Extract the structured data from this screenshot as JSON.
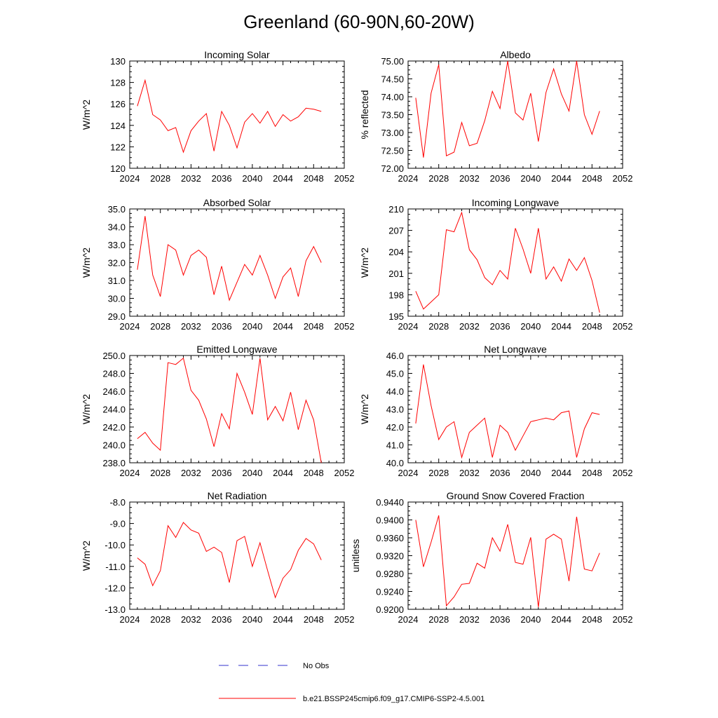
{
  "title": "Greenland (60-90N,60-20W)",
  "legend": [
    {
      "label": "No Obs",
      "color": "#3333cc",
      "style": "dashed"
    },
    {
      "label": "b.e21.BSSP245cmip6.f09_g17.CMIP6-SSP2-4.5.001",
      "color": "#ff0000",
      "style": "solid"
    }
  ],
  "chart_data": [
    {
      "type": "line",
      "title": "Incoming Solar",
      "ylabel": "W/m^2",
      "xlim": [
        2024,
        2052
      ],
      "xticks": [
        "2024",
        "2028",
        "2032",
        "2036",
        "2040",
        "2044",
        "2048",
        "2052"
      ],
      "ylim": [
        120,
        130
      ],
      "yticks": [
        "120",
        "122",
        "124",
        "126",
        "128",
        "130"
      ],
      "series": [
        {
          "color": "#ff0000",
          "x": [
            2025,
            2026,
            2027,
            2028,
            2029,
            2030,
            2031,
            2032,
            2033,
            2034,
            2035,
            2036,
            2037,
            2038,
            2039,
            2040,
            2041,
            2042,
            2043,
            2044,
            2045,
            2046,
            2047,
            2048,
            2049
          ],
          "y": [
            125.8,
            128.2,
            125.0,
            124.5,
            123.5,
            123.8,
            121.5,
            123.5,
            124.4,
            125.1,
            121.6,
            125.3,
            124.0,
            121.9,
            124.3,
            125.1,
            124.2,
            125.3,
            123.9,
            125.0,
            124.4,
            124.8,
            125.6,
            125.5,
            125.3
          ]
        }
      ]
    },
    {
      "type": "line",
      "title": "Albedo",
      "ylabel": "% reflected",
      "xlim": [
        2024,
        2052
      ],
      "xticks": [
        "2024",
        "2028",
        "2032",
        "2036",
        "2040",
        "2044",
        "2048",
        "2052"
      ],
      "ylim": [
        72.0,
        75.0
      ],
      "yticks": [
        "72.00",
        "72.50",
        "73.00",
        "73.50",
        "74.00",
        "74.50",
        "75.00"
      ],
      "series": [
        {
          "color": "#ff0000",
          "x": [
            2025,
            2026,
            2027,
            2028,
            2029,
            2030,
            2031,
            2032,
            2033,
            2034,
            2035,
            2036,
            2037,
            2038,
            2039,
            2040,
            2041,
            2042,
            2043,
            2044,
            2045,
            2046,
            2047,
            2048,
            2049
          ],
          "y": [
            73.97,
            72.3,
            74.1,
            74.9,
            72.35,
            72.45,
            73.28,
            72.63,
            72.7,
            73.33,
            74.15,
            73.67,
            75.0,
            73.55,
            73.35,
            74.1,
            72.75,
            74.12,
            74.78,
            74.08,
            73.6,
            75.0,
            73.5,
            72.95,
            73.6
          ]
        }
      ]
    },
    {
      "type": "line",
      "title": "Absorbed Solar",
      "ylabel": "W/m^2",
      "xlim": [
        2024,
        2052
      ],
      "xticks": [
        "2024",
        "2028",
        "2032",
        "2036",
        "2040",
        "2044",
        "2048",
        "2052"
      ],
      "ylim": [
        29.0,
        35.0
      ],
      "yticks": [
        "29.0",
        "30.0",
        "31.0",
        "32.0",
        "33.0",
        "34.0",
        "35.0"
      ],
      "series": [
        {
          "color": "#ff0000",
          "x": [
            2025,
            2026,
            2027,
            2028,
            2029,
            2030,
            2031,
            2032,
            2033,
            2034,
            2035,
            2036,
            2037,
            2038,
            2039,
            2040,
            2041,
            2042,
            2043,
            2044,
            2045,
            2046,
            2047,
            2048,
            2049
          ],
          "y": [
            31.6,
            34.6,
            31.3,
            30.1,
            33.0,
            32.7,
            31.3,
            32.4,
            32.7,
            32.3,
            30.2,
            31.8,
            29.9,
            30.9,
            31.9,
            31.3,
            32.4,
            31.3,
            30.0,
            31.2,
            31.7,
            30.1,
            32.1,
            32.9,
            32.0
          ]
        }
      ]
    },
    {
      "type": "line",
      "title": "Incoming Longwave",
      "ylabel": "W/m^2",
      "xlim": [
        2024,
        2052
      ],
      "xticks": [
        "2024",
        "2028",
        "2032",
        "2036",
        "2040",
        "2044",
        "2048",
        "2052"
      ],
      "ylim": [
        195,
        210
      ],
      "yticks": [
        "195",
        "198",
        "201",
        "204",
        "207",
        "210"
      ],
      "series": [
        {
          "color": "#ff0000",
          "x": [
            2025,
            2026,
            2027,
            2028,
            2029,
            2030,
            2031,
            2032,
            2033,
            2034,
            2035,
            2036,
            2037,
            2038,
            2039,
            2040,
            2041,
            2042,
            2043,
            2044,
            2045,
            2046,
            2047,
            2048,
            2049
          ],
          "y": [
            198.5,
            196.0,
            197.0,
            198.0,
            207.1,
            206.8,
            209.5,
            204.3,
            202.9,
            200.4,
            199.4,
            201.4,
            200.2,
            207.3,
            204.4,
            201.0,
            207.3,
            200.2,
            201.9,
            199.9,
            203.0,
            201.4,
            203.2,
            200.0,
            195.5
          ]
        }
      ]
    },
    {
      "type": "line",
      "title": "Emitted Longwave",
      "ylabel": "W/m^2",
      "xlim": [
        2024,
        2052
      ],
      "xticks": [
        "2024",
        "2028",
        "2032",
        "2036",
        "2040",
        "2044",
        "2048",
        "2052"
      ],
      "ylim": [
        238.0,
        250.0
      ],
      "yticks": [
        "238.0",
        "240.0",
        "242.0",
        "244.0",
        "246.0",
        "248.0",
        "250.0"
      ],
      "series": [
        {
          "color": "#ff0000",
          "x": [
            2025,
            2026,
            2027,
            2028,
            2029,
            2030,
            2031,
            2032,
            2033,
            2034,
            2035,
            2036,
            2037,
            2038,
            2039,
            2040,
            2041,
            2042,
            2043,
            2044,
            2045,
            2046,
            2047,
            2048,
            2049
          ],
          "y": [
            240.7,
            241.4,
            240.2,
            239.4,
            249.2,
            249.0,
            249.7,
            246.1,
            245.0,
            242.9,
            239.8,
            243.5,
            241.8,
            248.0,
            245.9,
            243.4,
            249.7,
            242.8,
            244.3,
            242.7,
            245.9,
            241.7,
            245.0,
            242.8,
            238.0
          ]
        }
      ]
    },
    {
      "type": "line",
      "title": "Net Longwave",
      "ylabel": "W/m^2",
      "xlim": [
        2024,
        2052
      ],
      "xticks": [
        "2024",
        "2028",
        "2032",
        "2036",
        "2040",
        "2044",
        "2048",
        "2052"
      ],
      "ylim": [
        40.0,
        46.0
      ],
      "yticks": [
        "40.0",
        "41.0",
        "42.0",
        "43.0",
        "44.0",
        "45.0",
        "46.0"
      ],
      "series": [
        {
          "color": "#ff0000",
          "x": [
            2025,
            2026,
            2027,
            2028,
            2029,
            2030,
            2031,
            2032,
            2033,
            2034,
            2035,
            2036,
            2037,
            2038,
            2039,
            2040,
            2041,
            2042,
            2043,
            2044,
            2045,
            2046,
            2047,
            2048,
            2049
          ],
          "y": [
            42.2,
            45.5,
            43.2,
            41.3,
            42.0,
            42.3,
            40.3,
            41.7,
            42.1,
            42.5,
            40.3,
            42.1,
            41.7,
            40.7,
            41.5,
            42.3,
            42.4,
            42.5,
            42.4,
            42.8,
            42.9,
            40.3,
            41.9,
            42.8,
            42.7
          ]
        }
      ]
    },
    {
      "type": "line",
      "title": "Net Radiation",
      "ylabel": "W/m^2",
      "xlim": [
        2024,
        2052
      ],
      "xticks": [
        "2024",
        "2028",
        "2032",
        "2036",
        "2040",
        "2044",
        "2048",
        "2052"
      ],
      "ylim": [
        -13.0,
        -8.0
      ],
      "yticks": [
        "-13.0",
        "-12.0",
        "-11.0",
        "-10.0",
        "-9.0",
        "-8.0"
      ],
      "series": [
        {
          "color": "#ff0000",
          "x": [
            2025,
            2026,
            2027,
            2028,
            2029,
            2030,
            2031,
            2032,
            2033,
            2034,
            2035,
            2036,
            2037,
            2038,
            2039,
            2040,
            2041,
            2042,
            2043,
            2044,
            2045,
            2046,
            2047,
            2048,
            2049
          ],
          "y": [
            -10.6,
            -10.9,
            -11.9,
            -11.2,
            -9.1,
            -9.65,
            -8.95,
            -9.3,
            -9.45,
            -10.3,
            -10.1,
            -10.35,
            -11.75,
            -9.8,
            -9.6,
            -11.0,
            -9.9,
            -11.2,
            -12.45,
            -11.55,
            -11.15,
            -10.25,
            -9.7,
            -9.95,
            -10.7
          ]
        }
      ]
    },
    {
      "type": "line",
      "title": "Ground Snow Covered Fraction",
      "ylabel": "unitless",
      "xlim": [
        2024,
        2052
      ],
      "xticks": [
        "2024",
        "2028",
        "2032",
        "2036",
        "2040",
        "2044",
        "2048",
        "2052"
      ],
      "ylim": [
        0.92,
        0.944
      ],
      "yticks": [
        "0.9200",
        "0.9240",
        "0.9280",
        "0.9320",
        "0.9360",
        "0.9400",
        "0.9440"
      ],
      "series": [
        {
          "color": "#ff0000",
          "x": [
            2025,
            2026,
            2027,
            2028,
            2029,
            2030,
            2031,
            2032,
            2033,
            2034,
            2035,
            2036,
            2037,
            2038,
            2039,
            2040,
            2041,
            2042,
            2043,
            2044,
            2045,
            2046,
            2047,
            2048,
            2049
          ],
          "y": [
            0.94,
            0.9295,
            0.935,
            0.941,
            0.9208,
            0.9228,
            0.9256,
            0.9258,
            0.9303,
            0.9292,
            0.936,
            0.933,
            0.939,
            0.9305,
            0.9301,
            0.9361,
            0.9205,
            0.9357,
            0.9368,
            0.9357,
            0.9263,
            0.9407,
            0.929,
            0.9286,
            0.9326
          ]
        }
      ]
    }
  ]
}
